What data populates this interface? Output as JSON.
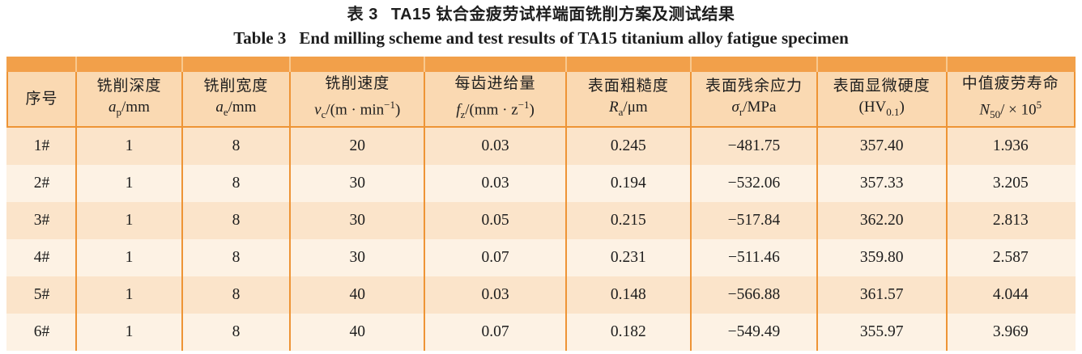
{
  "caption": {
    "zh_label": "表 3",
    "zh_text": "TA15 钛合金疲劳试样端面铣削方案及测试结果",
    "en_label": "Table 3",
    "en_text": "End milling scheme and test results of TA15 titanium alloy fatigue specimen"
  },
  "table": {
    "columns": [
      {
        "name_zh": "序号",
        "symbol": ""
      },
      {
        "name_zh": "铣削深度",
        "symbol": "*a*_{p}/mm"
      },
      {
        "name_zh": "铣削宽度",
        "symbol": "*a*_{e}/mm"
      },
      {
        "name_zh": "铣削速度",
        "symbol": "*v*_{c}/(m · min^{−1})"
      },
      {
        "name_zh": "每齿进给量",
        "symbol": "*f*_{z}/(mm · z^{−1})"
      },
      {
        "name_zh": "表面粗糙度",
        "symbol": "*R*_{a}/μm"
      },
      {
        "name_zh": "表面残余应力",
        "symbol": "*σ*_{r}/MPa"
      },
      {
        "name_zh": "表面显微硬度",
        "symbol": "(HV_{0.1})"
      },
      {
        "name_zh": "中值疲劳寿命",
        "symbol": "*N*_{50}/ × 10^{5}"
      }
    ],
    "rows": [
      [
        "1#",
        "1",
        "8",
        "20",
        "0.03",
        "0.245",
        "−481.75",
        "357.40",
        "1.936"
      ],
      [
        "2#",
        "1",
        "8",
        "30",
        "0.03",
        "0.194",
        "−532.06",
        "357.33",
        "3.205"
      ],
      [
        "3#",
        "1",
        "8",
        "30",
        "0.05",
        "0.215",
        "−517.84",
        "362.20",
        "2.813"
      ],
      [
        "4#",
        "1",
        "8",
        "30",
        "0.07",
        "0.231",
        "−511.46",
        "359.80",
        "2.587"
      ],
      [
        "5#",
        "1",
        "8",
        "40",
        "0.03",
        "0.148",
        "−566.88",
        "361.57",
        "4.044"
      ],
      [
        "6#",
        "1",
        "8",
        "40",
        "0.07",
        "0.182",
        "−549.49",
        "355.97",
        "3.969"
      ]
    ]
  },
  "colors": {
    "band": "#F2A04A",
    "band_separator": "#F8C88E",
    "header_bg": "#FAD9B2",
    "border": "#EE9435",
    "row_odd": "#FBE4CA",
    "row_even": "#FDF2E4",
    "text": "#1d1d1d"
  }
}
